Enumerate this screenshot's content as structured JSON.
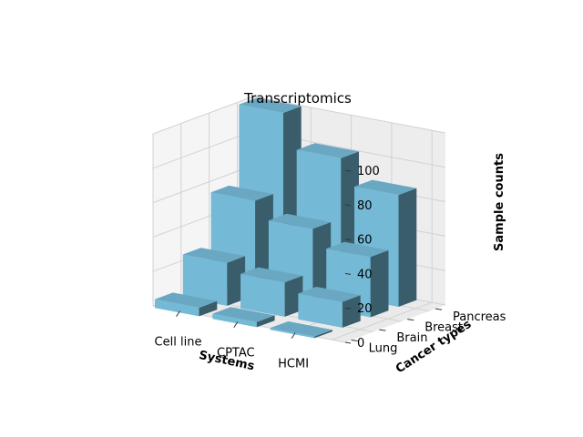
{
  "chart_data": {
    "type": "bar3d",
    "title": "Transcriptomics",
    "xlabel": "Systems",
    "ylabel": "Cancer types",
    "zlabel": "Sample counts",
    "x_categories": [
      "Cell line",
      "CPTAC",
      "HCMI"
    ],
    "y_categories": [
      "Lung",
      "Brain",
      "Breast",
      "Pancreas"
    ],
    "z_ticks": [
      0,
      20,
      40,
      60,
      80,
      100
    ],
    "zlim": [
      0,
      100
    ],
    "grid": true,
    "bar_color": "#74b9d6",
    "values": {
      "Cell line": {
        "Lung": 5,
        "Brain": 25,
        "Breast": 55,
        "Pancreas": 100
      },
      "CPTAC": {
        "Lung": 3,
        "Brain": 20,
        "Breast": 45,
        "Pancreas": 80
      },
      "HCMI": {
        "Lung": 1,
        "Brain": 15,
        "Breast": 35,
        "Pancreas": 65
      }
    }
  }
}
